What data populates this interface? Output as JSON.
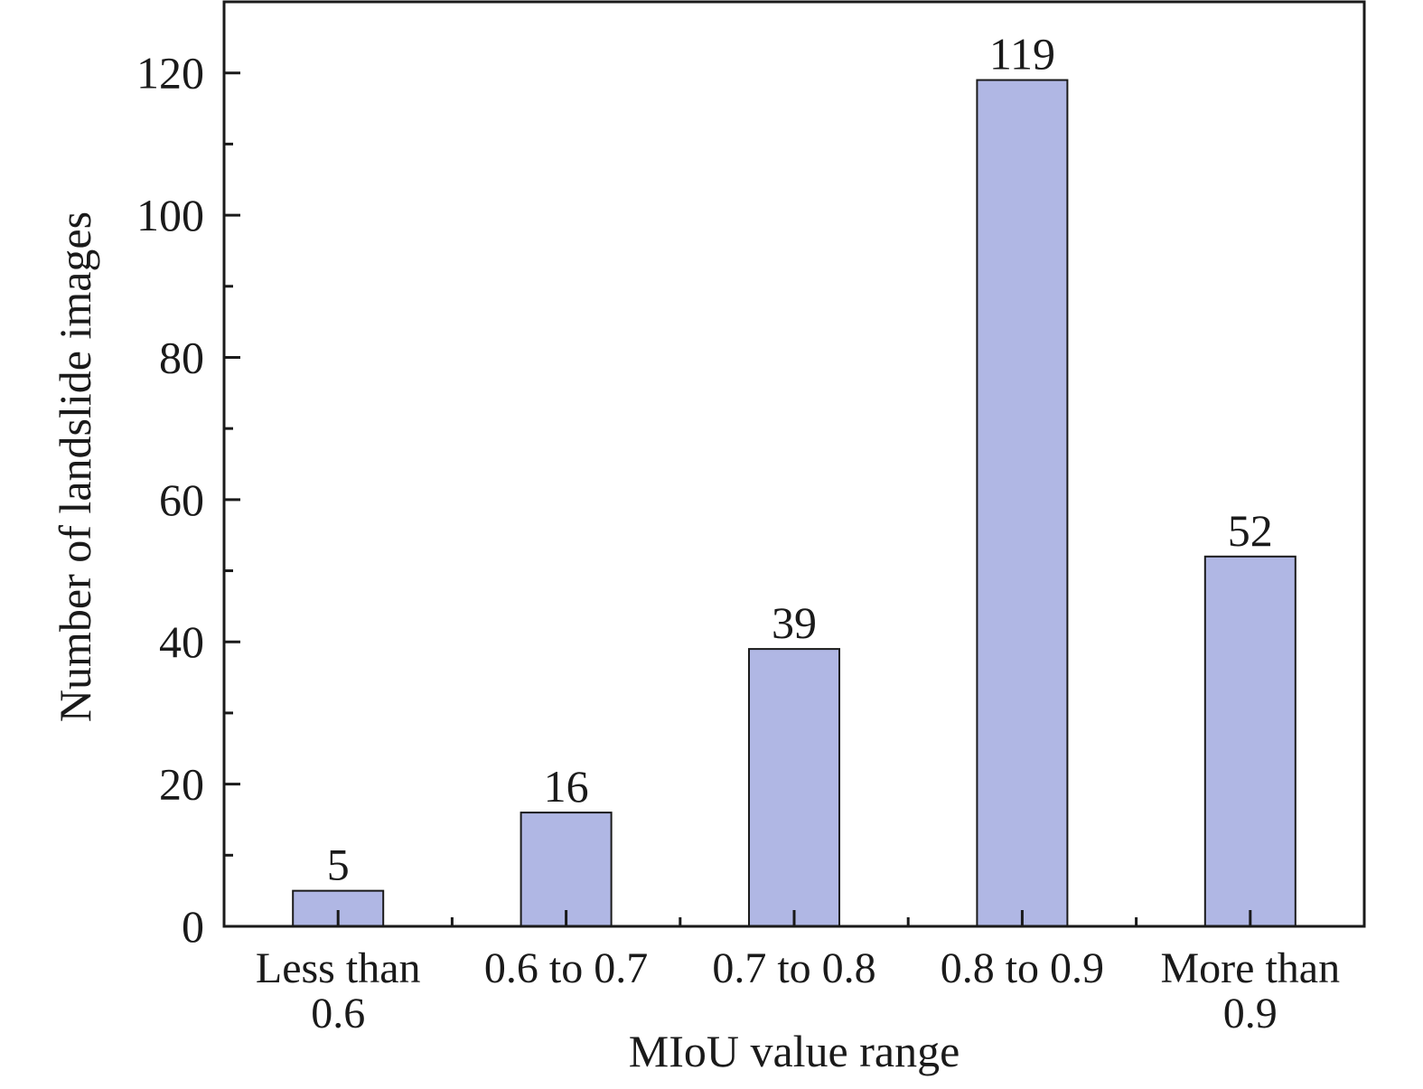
{
  "chart_data": {
    "type": "bar",
    "categories": [
      [
        "Less than",
        "0.6"
      ],
      [
        "0.6 to 0.7"
      ],
      [
        "0.7 to 0.8"
      ],
      [
        "0.8 to 0.9"
      ],
      [
        "More than",
        "0.9"
      ]
    ],
    "values": [
      5,
      16,
      39,
      119,
      52
    ],
    "value_labels": [
      "5",
      "16",
      "39",
      "119",
      "52"
    ],
    "xlabel": "MIoU value range",
    "ylabel": "Number of landslide images",
    "ylim": [
      0,
      130
    ],
    "yticks": [
      0,
      20,
      40,
      60,
      80,
      100,
      120
    ],
    "ytick_labels": [
      "0",
      "20",
      "40",
      "60",
      "80",
      "100",
      "120"
    ],
    "grid": false,
    "legend": "none",
    "bar_color": "#b0b7e4",
    "bar_edge_color": "#1a1a1a"
  }
}
